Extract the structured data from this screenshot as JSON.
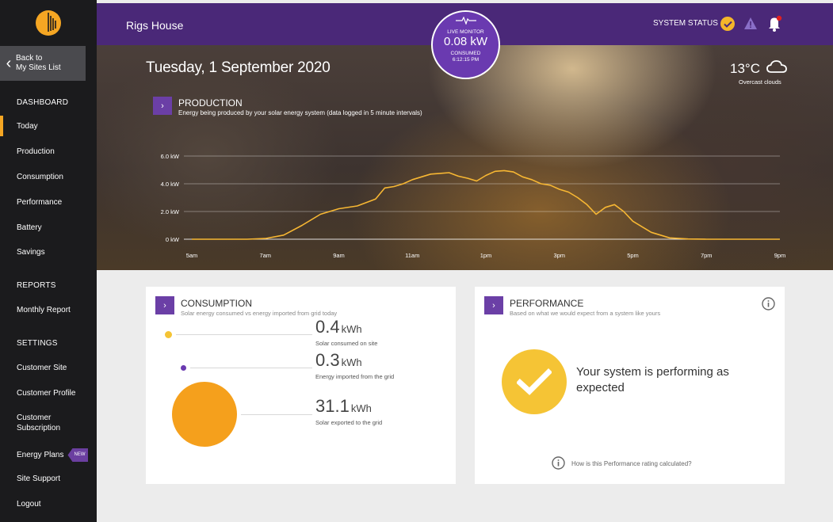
{
  "header": {
    "site_name": "Rigs House",
    "system_status_label": "SYSTEM STATUS"
  },
  "live_monitor": {
    "title": "LIVE MONITOR",
    "value": "0.08 kW",
    "consumed_label": "CONSUMED",
    "time": "6:12:15 PM"
  },
  "sidebar": {
    "back_label_1": "Back to",
    "back_label_2": "My Sites List",
    "dashboard_heading": "DASHBOARD",
    "dashboard_items": [
      {
        "label": "Today"
      },
      {
        "label": "Production"
      },
      {
        "label": "Consumption"
      },
      {
        "label": "Performance"
      },
      {
        "label": "Battery"
      },
      {
        "label": "Savings"
      }
    ],
    "reports_heading": "REPORTS",
    "reports_items": [
      {
        "label": "Monthly Report"
      }
    ],
    "settings_heading": "SETTINGS",
    "settings_items": [
      {
        "label": "Customer Site"
      },
      {
        "label": "Customer Profile"
      },
      {
        "label": "Customer Subscription"
      },
      {
        "label": "Energy Plans",
        "badge": "NEW"
      },
      {
        "label": "Site Support"
      },
      {
        "label": "Logout"
      }
    ],
    "active_item": "Today"
  },
  "hero": {
    "date": "Tuesday, 1 September 2020",
    "temperature": "13°C",
    "weather_desc": "Overcast clouds",
    "weather_icon": "cloud-icon",
    "production_title": "PRODUCTION",
    "production_sub": "Energy being produced by your solar energy system (data logged in 5 minute intervals)"
  },
  "chart_data": {
    "type": "line",
    "title": "PRODUCTION",
    "ylabel": "",
    "xlabel": "",
    "y_ticks": [
      "0 kW",
      "2.0 kW",
      "4.0 kW",
      "6.0 kW"
    ],
    "ylim": [
      0,
      6
    ],
    "x_ticks": [
      "5am",
      "7am",
      "9am",
      "11am",
      "1pm",
      "3pm",
      "5pm",
      "7pm",
      "9pm"
    ],
    "xlim": [
      5,
      21
    ],
    "color": "#f7b733",
    "series": [
      {
        "x": [
          5,
          6.5,
          7,
          7.5,
          8,
          8.5,
          9,
          9.5,
          10,
          10.25,
          10.5,
          10.75,
          11,
          11.25,
          11.5,
          11.75,
          12,
          12.25,
          12.5,
          12.75,
          13,
          13.25,
          13.5,
          13.75,
          14,
          14.25,
          14.5,
          14.75,
          15,
          15.25,
          15.5,
          15.75,
          16,
          16.25,
          16.5,
          16.75,
          17,
          17.5,
          18,
          18.5,
          19,
          21
        ],
        "y": [
          0,
          0,
          0.05,
          0.3,
          1.0,
          1.8,
          2.2,
          2.4,
          2.9,
          3.7,
          3.8,
          4.0,
          4.3,
          4.5,
          4.7,
          4.75,
          4.8,
          4.55,
          4.4,
          4.2,
          4.6,
          4.9,
          4.95,
          4.85,
          4.5,
          4.3,
          4.0,
          3.9,
          3.6,
          3.4,
          3.0,
          2.5,
          1.8,
          2.3,
          2.5,
          2.0,
          1.3,
          0.5,
          0.1,
          0.02,
          0,
          0
        ]
      }
    ]
  },
  "consumption": {
    "title": "CONSUMPTION",
    "sub": "Solar energy consumed vs energy imported from grid today",
    "items": [
      {
        "value": "0.4",
        "unit": "kWh",
        "label": "Solar consumed on site",
        "color": "#f5c435"
      },
      {
        "value": "0.3",
        "unit": "kWh",
        "label": "Energy imported from the grid",
        "color": "#6a3ab0"
      },
      {
        "value": "31.1",
        "unit": "kWh",
        "label": "Solar exported to the grid",
        "color": "#f5a01c"
      }
    ]
  },
  "performance": {
    "title": "PERFORMANCE",
    "sub": "Based on what we would expect from a system like yours",
    "message": "Your system is performing as expected",
    "footer_link": "How is this Performance rating calculated?"
  }
}
